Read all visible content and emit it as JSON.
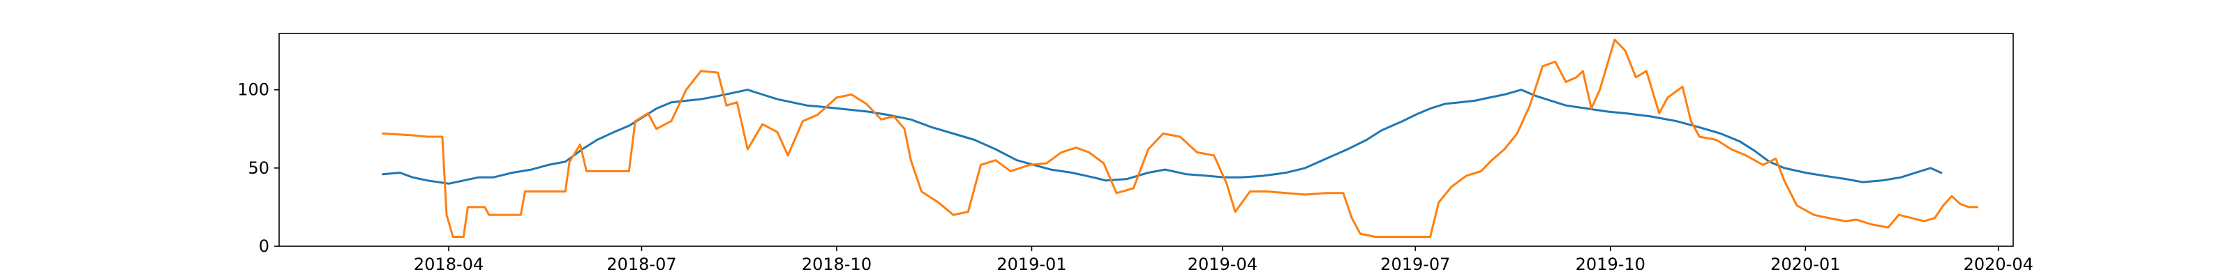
{
  "chart_data": {
    "type": "line",
    "title": "",
    "xlabel": "",
    "ylabel": "",
    "x_range": [
      "2018-01-11",
      "2020-04-08"
    ],
    "ylim": [
      0,
      136
    ],
    "grid": false,
    "x_ticks": [
      {
        "date": "2018-04-01",
        "label": "2018-04"
      },
      {
        "date": "2018-07-01",
        "label": "2018-07"
      },
      {
        "date": "2018-10-01",
        "label": "2018-10"
      },
      {
        "date": "2019-01-01",
        "label": "2019-01"
      },
      {
        "date": "2019-04-01",
        "label": "2019-04"
      },
      {
        "date": "2019-07-01",
        "label": "2019-07"
      },
      {
        "date": "2019-10-01",
        "label": "2019-10"
      },
      {
        "date": "2020-01-01",
        "label": "2020-01"
      },
      {
        "date": "2020-04-01",
        "label": "2020-04"
      }
    ],
    "y_ticks": [
      {
        "value": 0,
        "label": "0"
      },
      {
        "value": 50,
        "label": "50"
      },
      {
        "value": 100,
        "label": "100"
      }
    ],
    "series": [
      {
        "color": "#1f77b4",
        "points": [
          [
            "2018-03-01",
            46
          ],
          [
            "2018-03-09",
            47
          ],
          [
            "2018-03-15",
            44
          ],
          [
            "2018-03-22",
            42
          ],
          [
            "2018-04-01",
            40
          ],
          [
            "2018-04-08",
            42
          ],
          [
            "2018-04-15",
            44
          ],
          [
            "2018-04-22",
            44
          ],
          [
            "2018-05-01",
            47
          ],
          [
            "2018-05-10",
            49
          ],
          [
            "2018-05-18",
            52
          ],
          [
            "2018-05-26",
            54
          ],
          [
            "2018-06-03",
            62
          ],
          [
            "2018-06-10",
            68
          ],
          [
            "2018-06-18",
            73
          ],
          [
            "2018-06-25",
            77
          ],
          [
            "2018-07-01",
            82
          ],
          [
            "2018-07-08",
            88
          ],
          [
            "2018-07-15",
            92
          ],
          [
            "2018-07-22",
            93
          ],
          [
            "2018-07-29",
            94
          ],
          [
            "2018-08-06",
            96
          ],
          [
            "2018-08-13",
            98
          ],
          [
            "2018-08-20",
            100
          ],
          [
            "2018-08-27",
            97
          ],
          [
            "2018-09-03",
            94
          ],
          [
            "2018-09-10",
            92
          ],
          [
            "2018-09-17",
            90
          ],
          [
            "2018-09-25",
            89
          ],
          [
            "2018-10-02",
            88
          ],
          [
            "2018-10-09",
            87
          ],
          [
            "2018-10-16",
            86
          ],
          [
            "2018-10-25",
            84
          ],
          [
            "2018-11-05",
            81
          ],
          [
            "2018-11-15",
            76
          ],
          [
            "2018-11-25",
            72
          ],
          [
            "2018-12-05",
            68
          ],
          [
            "2018-12-15",
            62
          ],
          [
            "2018-12-25",
            55
          ],
          [
            "2019-01-02",
            52
          ],
          [
            "2019-01-10",
            49
          ],
          [
            "2019-01-20",
            47
          ],
          [
            "2019-01-30",
            44
          ],
          [
            "2019-02-05",
            42
          ],
          [
            "2019-02-15",
            43
          ],
          [
            "2019-02-25",
            47
          ],
          [
            "2019-03-05",
            49
          ],
          [
            "2019-03-15",
            46
          ],
          [
            "2019-03-25",
            45
          ],
          [
            "2019-04-02",
            44
          ],
          [
            "2019-04-10",
            44
          ],
          [
            "2019-04-20",
            45
          ],
          [
            "2019-05-01",
            47
          ],
          [
            "2019-05-10",
            50
          ],
          [
            "2019-05-20",
            56
          ],
          [
            "2019-05-30",
            62
          ],
          [
            "2019-06-08",
            68
          ],
          [
            "2019-06-15",
            74
          ],
          [
            "2019-06-25",
            80
          ],
          [
            "2019-07-01",
            84
          ],
          [
            "2019-07-08",
            88
          ],
          [
            "2019-07-15",
            91
          ],
          [
            "2019-07-22",
            92
          ],
          [
            "2019-07-29",
            93
          ],
          [
            "2019-08-05",
            95
          ],
          [
            "2019-08-12",
            97
          ],
          [
            "2019-08-20",
            100
          ],
          [
            "2019-08-27",
            96
          ],
          [
            "2019-09-03",
            93
          ],
          [
            "2019-09-10",
            90
          ],
          [
            "2019-09-20",
            88
          ],
          [
            "2019-09-30",
            86
          ],
          [
            "2019-10-08",
            85
          ],
          [
            "2019-10-20",
            83
          ],
          [
            "2019-11-01",
            80
          ],
          [
            "2019-11-12",
            76
          ],
          [
            "2019-11-22",
            72
          ],
          [
            "2019-12-01",
            67
          ],
          [
            "2019-12-08",
            61
          ],
          [
            "2019-12-15",
            54
          ],
          [
            "2019-12-22",
            50
          ],
          [
            "2020-01-01",
            47
          ],
          [
            "2020-01-10",
            45
          ],
          [
            "2020-01-20",
            43
          ],
          [
            "2020-01-28",
            41
          ],
          [
            "2020-02-06",
            42
          ],
          [
            "2020-02-15",
            44
          ],
          [
            "2020-02-22",
            47
          ],
          [
            "2020-02-29",
            50
          ],
          [
            "2020-03-05",
            47
          ]
        ]
      },
      {
        "color": "#ff7f0e",
        "points": [
          [
            "2018-03-01",
            72
          ],
          [
            "2018-03-14",
            71
          ],
          [
            "2018-03-22",
            70
          ],
          [
            "2018-03-29",
            70
          ],
          [
            "2018-03-31",
            20
          ],
          [
            "2018-04-03",
            6
          ],
          [
            "2018-04-08",
            6
          ],
          [
            "2018-04-10",
            25
          ],
          [
            "2018-04-18",
            25
          ],
          [
            "2018-04-20",
            20
          ],
          [
            "2018-05-05",
            20
          ],
          [
            "2018-05-07",
            35
          ],
          [
            "2018-05-20",
            35
          ],
          [
            "2018-05-26",
            35
          ],
          [
            "2018-05-28",
            54
          ],
          [
            "2018-06-02",
            65
          ],
          [
            "2018-06-05",
            48
          ],
          [
            "2018-06-15",
            48
          ],
          [
            "2018-06-25",
            48
          ],
          [
            "2018-06-28",
            80
          ],
          [
            "2018-07-04",
            85
          ],
          [
            "2018-07-08",
            75
          ],
          [
            "2018-07-15",
            80
          ],
          [
            "2018-07-22",
            100
          ],
          [
            "2018-07-29",
            112
          ],
          [
            "2018-08-06",
            111
          ],
          [
            "2018-08-10",
            90
          ],
          [
            "2018-08-15",
            92
          ],
          [
            "2018-08-20",
            62
          ],
          [
            "2018-08-27",
            78
          ],
          [
            "2018-09-03",
            73
          ],
          [
            "2018-09-08",
            58
          ],
          [
            "2018-09-15",
            80
          ],
          [
            "2018-09-22",
            84
          ],
          [
            "2018-10-01",
            95
          ],
          [
            "2018-10-08",
            97
          ],
          [
            "2018-10-15",
            91
          ],
          [
            "2018-10-22",
            81
          ],
          [
            "2018-10-28",
            83
          ],
          [
            "2018-11-02",
            75
          ],
          [
            "2018-11-05",
            55
          ],
          [
            "2018-11-10",
            35
          ],
          [
            "2018-11-18",
            28
          ],
          [
            "2018-11-25",
            20
          ],
          [
            "2018-12-02",
            22
          ],
          [
            "2018-12-08",
            52
          ],
          [
            "2018-12-15",
            55
          ],
          [
            "2018-12-22",
            48
          ],
          [
            "2018-12-31",
            52
          ],
          [
            "2019-01-08",
            53
          ],
          [
            "2019-01-15",
            60
          ],
          [
            "2019-01-22",
            63
          ],
          [
            "2019-01-28",
            60
          ],
          [
            "2019-02-04",
            53
          ],
          [
            "2019-02-10",
            34
          ],
          [
            "2019-02-18",
            37
          ],
          [
            "2019-02-25",
            62
          ],
          [
            "2019-03-04",
            72
          ],
          [
            "2019-03-12",
            70
          ],
          [
            "2019-03-20",
            60
          ],
          [
            "2019-03-28",
            58
          ],
          [
            "2019-04-03",
            40
          ],
          [
            "2019-04-07",
            22
          ],
          [
            "2019-04-14",
            35
          ],
          [
            "2019-04-22",
            35
          ],
          [
            "2019-05-01",
            34
          ],
          [
            "2019-05-10",
            33
          ],
          [
            "2019-05-20",
            34
          ],
          [
            "2019-05-28",
            34
          ],
          [
            "2019-06-01",
            18
          ],
          [
            "2019-06-05",
            8
          ],
          [
            "2019-06-12",
            6
          ],
          [
            "2019-06-20",
            6
          ],
          [
            "2019-06-30",
            6
          ],
          [
            "2019-07-08",
            6
          ],
          [
            "2019-07-12",
            28
          ],
          [
            "2019-07-18",
            38
          ],
          [
            "2019-07-25",
            45
          ],
          [
            "2019-08-01",
            48
          ],
          [
            "2019-08-06",
            55
          ],
          [
            "2019-08-12",
            62
          ],
          [
            "2019-08-18",
            72
          ],
          [
            "2019-08-24",
            90
          ],
          [
            "2019-08-30",
            115
          ],
          [
            "2019-09-05",
            118
          ],
          [
            "2019-09-10",
            105
          ],
          [
            "2019-09-15",
            108
          ],
          [
            "2019-09-18",
            112
          ],
          [
            "2019-09-22",
            88
          ],
          [
            "2019-09-26",
            100
          ],
          [
            "2019-10-03",
            132
          ],
          [
            "2019-10-08",
            125
          ],
          [
            "2019-10-13",
            108
          ],
          [
            "2019-10-18",
            112
          ],
          [
            "2019-10-24",
            85
          ],
          [
            "2019-10-28",
            95
          ],
          [
            "2019-11-04",
            102
          ],
          [
            "2019-11-08",
            80
          ],
          [
            "2019-11-12",
            70
          ],
          [
            "2019-11-20",
            68
          ],
          [
            "2019-11-27",
            62
          ],
          [
            "2019-12-04",
            58
          ],
          [
            "2019-12-12",
            52
          ],
          [
            "2019-12-18",
            56
          ],
          [
            "2019-12-22",
            42
          ],
          [
            "2019-12-28",
            26
          ],
          [
            "2020-01-05",
            20
          ],
          [
            "2020-01-12",
            18
          ],
          [
            "2020-01-20",
            16
          ],
          [
            "2020-01-25",
            17
          ],
          [
            "2020-02-01",
            14
          ],
          [
            "2020-02-09",
            12
          ],
          [
            "2020-02-14",
            20
          ],
          [
            "2020-02-20",
            18
          ],
          [
            "2020-02-26",
            16
          ],
          [
            "2020-03-02",
            18
          ],
          [
            "2020-03-06",
            26
          ],
          [
            "2020-03-10",
            32
          ],
          [
            "2020-03-14",
            27
          ],
          [
            "2020-03-18",
            25
          ],
          [
            "2020-03-22",
            25
          ]
        ]
      }
    ]
  }
}
